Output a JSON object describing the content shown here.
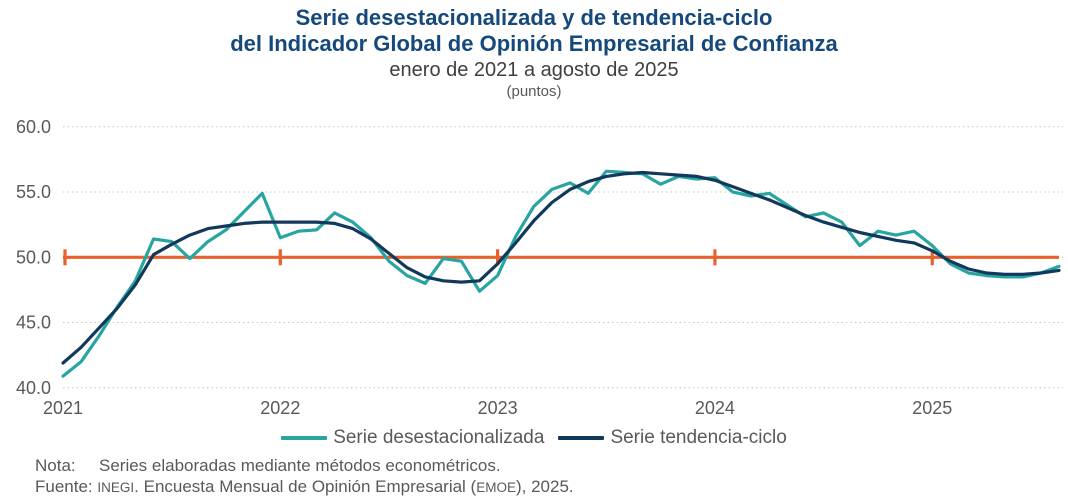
{
  "header": {
    "title_line1": "Serie desestacionalizada y de tendencia-ciclo",
    "title_line2": "del Indicador Global de Opinión Empresarial de Confianza",
    "subtitle": "enero de 2021 a agosto de 2025",
    "units": "(puntos)"
  },
  "chart_data": {
    "type": "line",
    "title": "Serie desestacionalizada y de tendencia-ciclo del Indicador Global de Opinión Empresarial de Confianza",
    "subtitle": "enero de 2021 a agosto de 2025",
    "ylabel": "puntos",
    "x_unit": "month",
    "x_range": "2021-01 to 2025-08",
    "x_tick_labels": [
      "2021",
      "2022",
      "2023",
      "2024",
      "2025"
    ],
    "ylim": [
      40,
      60
    ],
    "yticks": [
      60.0,
      55.0,
      50.0,
      45.0,
      40.0
    ],
    "grid": "horizontal-dotted",
    "gridline_color": "#C6C6C6",
    "legend_position": "bottom-center",
    "reference_line": {
      "value": 50.0,
      "color": "#E8602C",
      "tick_months": [
        0,
        12,
        24,
        36,
        48
      ]
    },
    "series": [
      {
        "name": "Serie desestacionalizada",
        "color": "#28A5A1",
        "values": [
          40.9,
          42.0,
          44.0,
          46.2,
          48.2,
          51.4,
          51.2,
          49.9,
          51.2,
          52.1,
          53.5,
          54.9,
          51.5,
          52.0,
          52.1,
          53.4,
          52.7,
          51.5,
          49.7,
          48.6,
          48.0,
          49.9,
          49.7,
          47.4,
          48.6,
          51.6,
          53.9,
          55.2,
          55.7,
          54.9,
          56.6,
          56.5,
          56.4,
          55.6,
          56.2,
          56.0,
          56.1,
          55.0,
          54.7,
          54.9,
          54.0,
          53.1,
          53.4,
          52.7,
          50.9,
          52.0,
          51.7,
          52.0,
          50.9,
          49.5,
          48.8,
          48.6,
          48.5,
          48.5,
          48.8,
          49.3
        ]
      },
      {
        "name": "Serie tendencia-ciclo",
        "color": "#12395C",
        "values": [
          41.9,
          43.1,
          44.6,
          46.1,
          47.9,
          50.2,
          51.0,
          51.7,
          52.2,
          52.4,
          52.6,
          52.7,
          52.7,
          52.7,
          52.7,
          52.6,
          52.2,
          51.4,
          50.3,
          49.2,
          48.5,
          48.2,
          48.1,
          48.2,
          49.5,
          51.1,
          52.8,
          54.2,
          55.2,
          55.8,
          56.2,
          56.4,
          56.5,
          56.4,
          56.3,
          56.2,
          55.9,
          55.4,
          54.9,
          54.4,
          53.8,
          53.2,
          52.7,
          52.3,
          51.9,
          51.6,
          51.3,
          51.1,
          50.5,
          49.7,
          49.1,
          48.8,
          48.7,
          48.7,
          48.8,
          49.0
        ]
      }
    ]
  },
  "notes": {
    "nota_label": "Nota:",
    "nota_text": "Series elaboradas mediante métodos econométricos.",
    "fuente_label": "Fuente:",
    "fuente_parts": [
      {
        "text": "INEGI",
        "small": true
      },
      {
        "text": ". Encuesta Mensual de Opinión Empresarial (",
        "small": false
      },
      {
        "text": "EMOE",
        "small": true
      },
      {
        "text": "), 2025.",
        "small": false
      }
    ]
  },
  "colors": {
    "title": "#15497B",
    "axis_text": "#595959",
    "notes_text": "#58595B",
    "reference": "#E8602C",
    "desestacionalizada": "#28A5A1",
    "tendencia_ciclo": "#12395C"
  }
}
